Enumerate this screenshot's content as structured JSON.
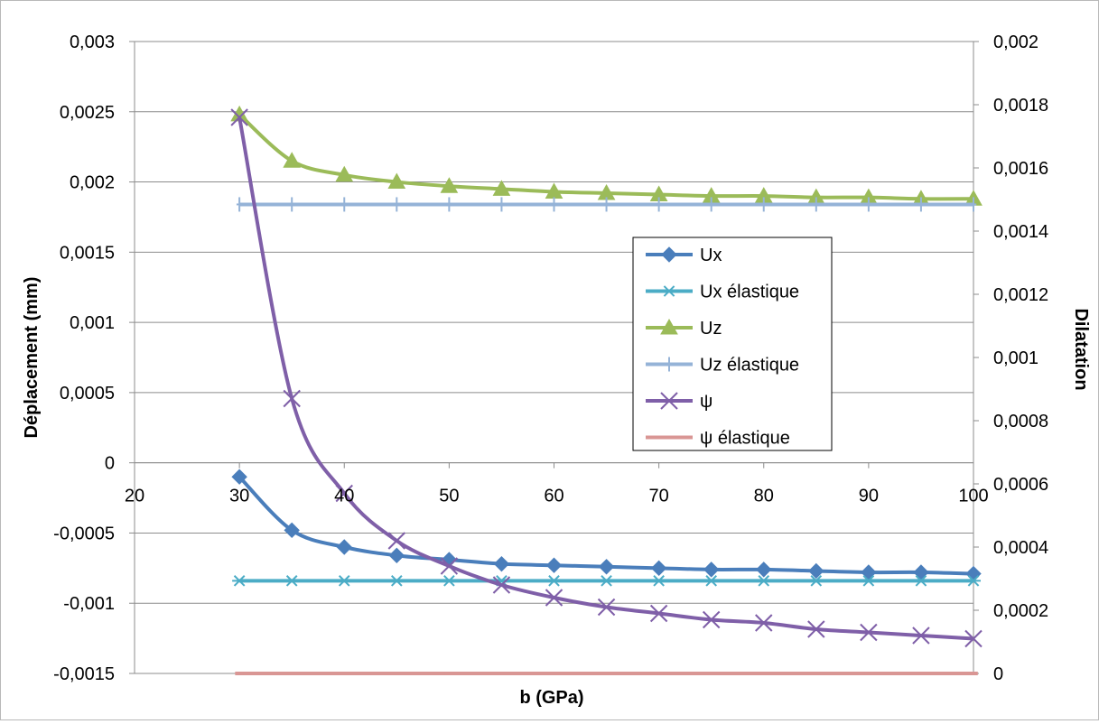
{
  "chart_data": {
    "type": "line",
    "title": "",
    "xlabel": "b (GPa)",
    "ylabel_left": "Déplacement (mm)",
    "ylabel_right": "Dilatation",
    "xlim": [
      20,
      100
    ],
    "ylim_left": [
      -0.0015,
      0.003
    ],
    "ylim_right": [
      0,
      0.002
    ],
    "x_ticks": [
      "20",
      "30",
      "40",
      "50",
      "60",
      "70",
      "80",
      "90",
      "100"
    ],
    "y_left_ticks": [
      "-0,0015",
      "-0,001",
      "-0,0005",
      "0",
      "0,0005",
      "0,001",
      "0,0015",
      "0,002",
      "0,0025",
      "0,003"
    ],
    "y_right_ticks": [
      "0",
      "0,0002",
      "0,0004",
      "0,0006",
      "0,0008",
      "0,001",
      "0,0012",
      "0,0014",
      "0,0016",
      "0,0018",
      "0,002"
    ],
    "grid": true,
    "legend_position": "center-right",
    "x": [
      30,
      35,
      40,
      45,
      50,
      55,
      60,
      65,
      70,
      75,
      80,
      85,
      90,
      95,
      100
    ],
    "series": [
      {
        "name": "Ux",
        "axis": "left",
        "color": "#4a7ebb",
        "marker": "diamond",
        "values": [
          -0.0001,
          -0.00048,
          -0.0006,
          -0.00066,
          -0.00069,
          -0.00072,
          -0.00073,
          -0.00074,
          -0.00075,
          -0.00076,
          -0.00076,
          -0.00077,
          -0.00078,
          -0.00078,
          -0.00079
        ]
      },
      {
        "name": "Ux élastique",
        "axis": "left",
        "color": "#4bacc6",
        "marker": "asterisk",
        "values": [
          -0.00084,
          -0.00084,
          -0.00084,
          -0.00084,
          -0.00084,
          -0.00084,
          -0.00084,
          -0.00084,
          -0.00084,
          -0.00084,
          -0.00084,
          -0.00084,
          -0.00084,
          -0.00084,
          -0.00084
        ]
      },
      {
        "name": "Uz",
        "axis": "left",
        "color": "#9bbb59",
        "marker": "triangle",
        "values": [
          0.00248,
          0.00215,
          0.00205,
          0.002,
          0.00197,
          0.00195,
          0.00193,
          0.00192,
          0.00191,
          0.0019,
          0.0019,
          0.00189,
          0.00189,
          0.00188,
          0.00188
        ]
      },
      {
        "name": "Uz élastique",
        "axis": "left",
        "color": "#95b3d7",
        "marker": "plus",
        "values": [
          0.00184,
          0.00184,
          0.00184,
          0.00184,
          0.00184,
          0.00184,
          0.00184,
          0.00184,
          0.00184,
          0.00184,
          0.00184,
          0.00184,
          0.00184,
          0.00184,
          0.00184
        ]
      },
      {
        "name": "ψ",
        "axis": "right",
        "color": "#7f5fa8",
        "marker": "x",
        "values": [
          0.00176,
          0.00087,
          0.00057,
          0.00042,
          0.00034,
          0.00028,
          0.00024,
          0.00021,
          0.00019,
          0.00017,
          0.00016,
          0.00014,
          0.00013,
          0.00012,
          0.00011
        ]
      },
      {
        "name": "ψ élastique",
        "axis": "right",
        "color": "#d99694",
        "marker": "dash",
        "values": [
          0,
          0,
          0,
          0,
          0,
          0,
          0,
          0,
          0,
          0,
          0,
          0,
          0,
          0,
          0
        ]
      }
    ]
  }
}
